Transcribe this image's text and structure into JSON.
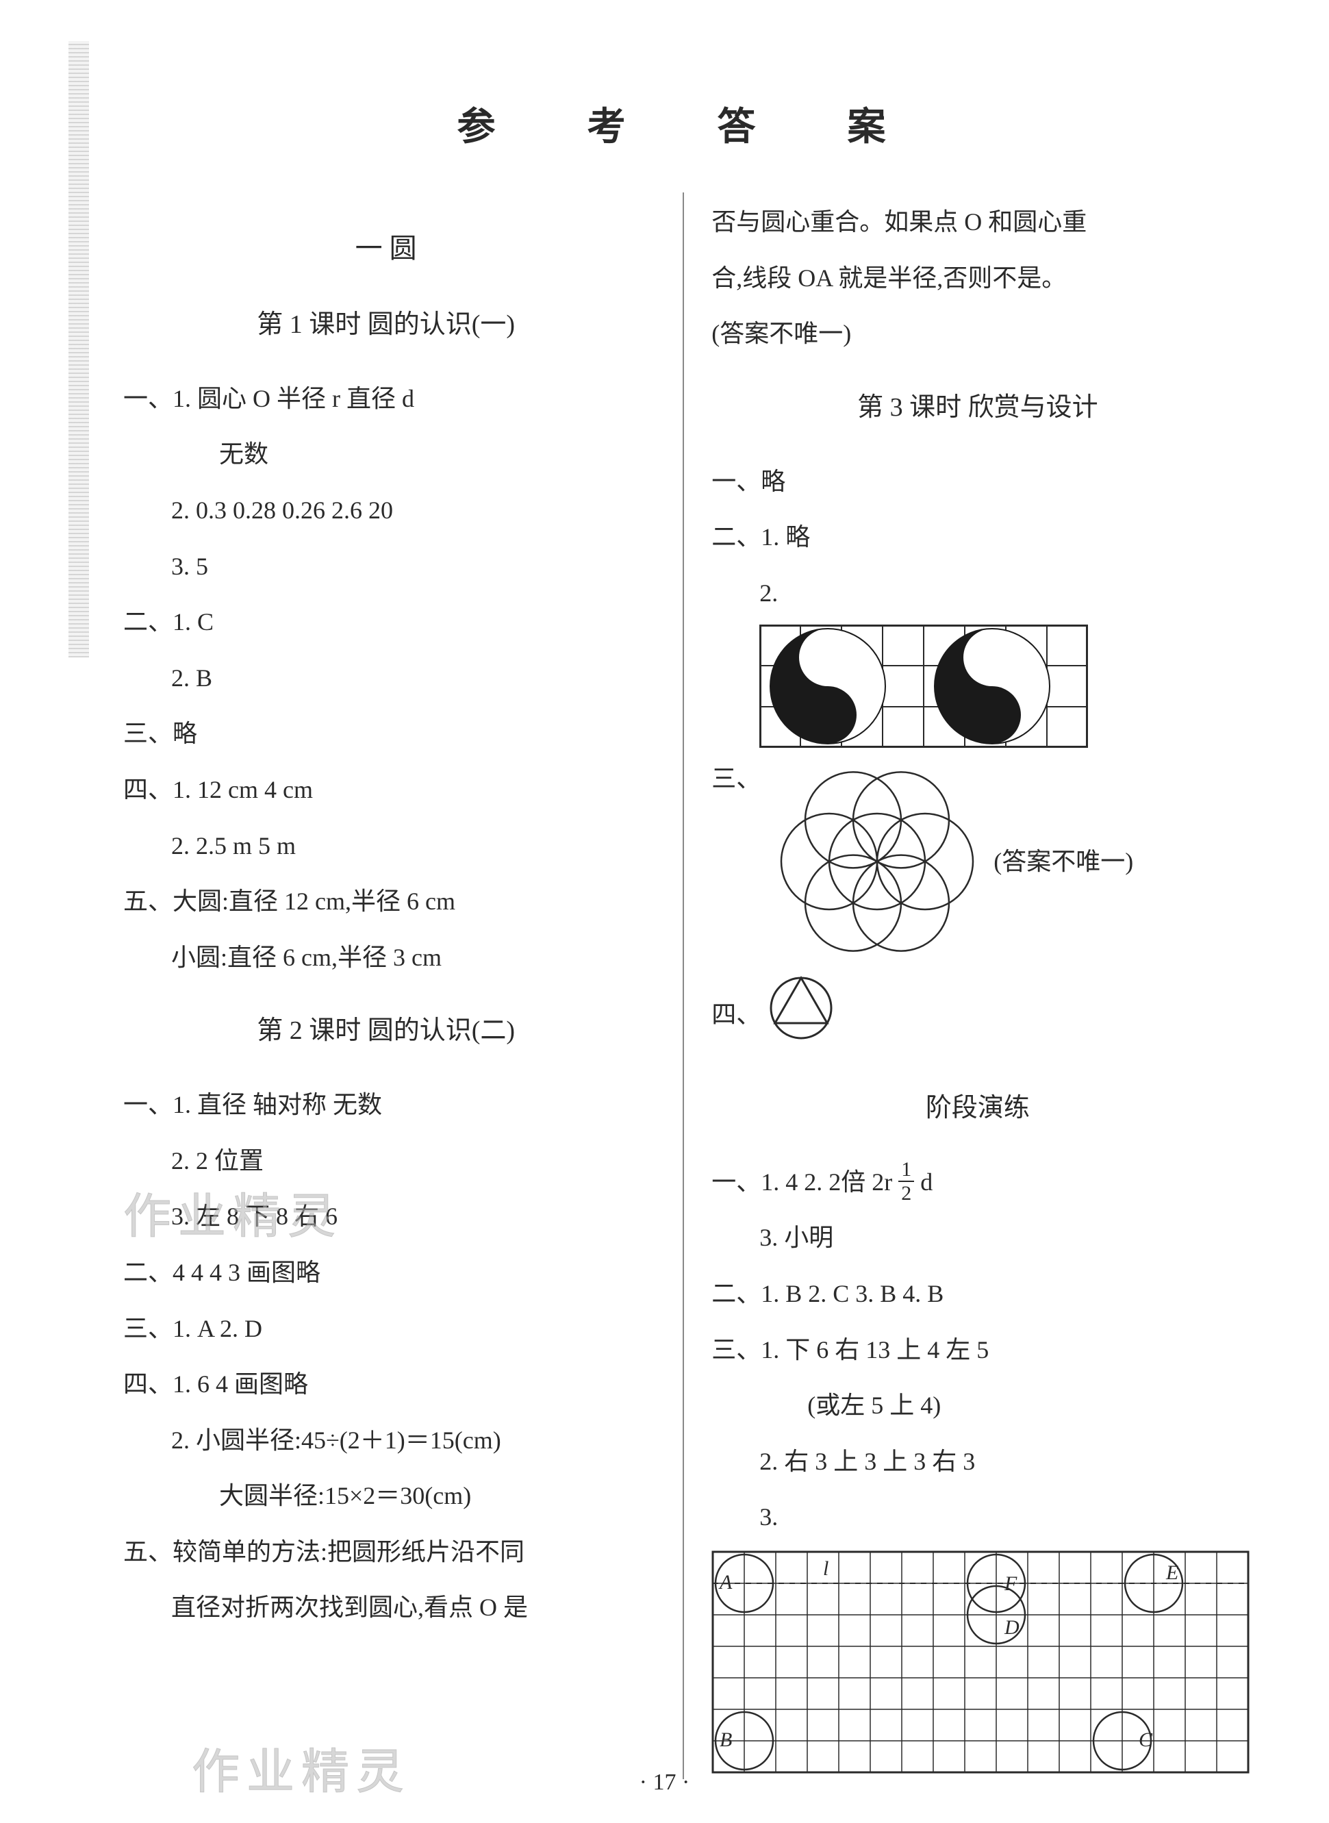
{
  "title": "参 考 答 案",
  "left": {
    "chapter": "一 圆",
    "lesson1": {
      "heading": "第 1 课时 圆的认识(一)",
      "q1_1": "一、1. 圆心 O 半径 r 直径 d",
      "q1_1b": "无数",
      "q1_2": "2. 0.3 0.28 0.26 2.6 20",
      "q1_3": "3. 5",
      "q2_1": "二、1. C",
      "q2_2": "2. B",
      "q3": "三、略",
      "q4_1": "四、1. 12 cm 4 cm",
      "q4_2": "2. 2.5 m 5 m",
      "q5a": "五、大圆:直径 12 cm,半径 6 cm",
      "q5b": "小圆:直径 6 cm,半径 3 cm"
    },
    "lesson2": {
      "heading": "第 2 课时 圆的认识(二)",
      "q1_1": "一、1. 直径 轴对称 无数",
      "q1_2": "2. 2 位置",
      "q1_3": "3. 左 8 下 8 右 6",
      "q2": "二、4 4 4 3 画图略",
      "q3": "三、1. A 2. D",
      "q4_1": "四、1. 6 4 画图略",
      "q4_2": "2. 小圆半径:45÷(2＋1)＝15(cm)",
      "q4_2b": "大圆半径:15×2＝30(cm)",
      "q5a": "五、较简单的方法:把圆形纸片沿不同",
      "q5b": "直径对折两次找到圆心,看点 O 是"
    }
  },
  "right": {
    "cont1": "否与圆心重合。如果点 O 和圆心重",
    "cont2": "合,线段 OA 就是半径,否则不是。",
    "cont3": "(答案不唯一)",
    "lesson3": {
      "heading": "第 3 课时 欣赏与设计",
      "q1": "一、略",
      "q2_1": "二、1. 略",
      "q2_2": "2.",
      "q3": "三、",
      "q3_note": "(答案不唯一)",
      "q4": "四、"
    },
    "stage": {
      "heading": "阶段演练",
      "q1_1a": "一、1. 4 2. 2倍 2r ",
      "q1_1b": "d",
      "q1_3": "3. 小明",
      "q2": "二、1. B 2. C 3. B 4. B",
      "q3_1": "三、1. 下 6 右 13 上 4 左 5",
      "q3_1b": "(或左 5 上 4)",
      "q3_2": "2. 右 3 上 3 上 3 右 3",
      "q3_3": "3."
    }
  },
  "page_num": "· 17 ·",
  "watermark": "作业精灵",
  "figures": {
    "yinyang": {
      "bg": "#ffffff",
      "fg": "#1a1a1a",
      "grid": "#2a2a2a",
      "cell": 60,
      "cols": 8,
      "rows": 3
    },
    "flower": {
      "stroke": "#2a2a2a",
      "r": 70
    },
    "triangle_circle": {
      "stroke": "#2a2a2a",
      "r": 44
    },
    "grid": {
      "stroke": "#2a2a2a",
      "cols": 17,
      "rows": 7,
      "cell": 46,
      "circle_r": 42,
      "labels": {
        "A": "A",
        "B": "B",
        "C": "C",
        "D": "D",
        "E": "E",
        "F": "F",
        "l": "l"
      }
    }
  }
}
